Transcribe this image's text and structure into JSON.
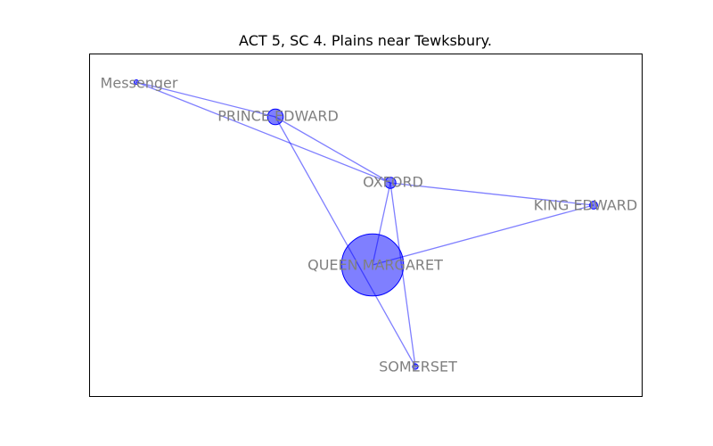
{
  "title": "ACT 5, SC 4. Plains near Tewksbury.",
  "colors": {
    "node_fill": "#0000ff",
    "edge": "#0000ff",
    "label": "#808080",
    "frame": "#000000"
  },
  "graph": {
    "nodes": [
      {
        "id": "messenger",
        "label": "Messenger",
        "weight": 1
      },
      {
        "id": "prince_edward",
        "label": "PRINCE EDWARD",
        "weight": 16
      },
      {
        "id": "oxford",
        "label": "OXFORD",
        "weight": 8
      },
      {
        "id": "king_edward",
        "label": "KING EDWARD",
        "weight": 4
      },
      {
        "id": "queen_margaret",
        "label": "QUEEN MARGARET",
        "weight": 250
      },
      {
        "id": "somerset",
        "label": "SOMERSET",
        "weight": 2
      }
    ],
    "edges": [
      {
        "source": "messenger",
        "target": "prince_edward"
      },
      {
        "source": "messenger",
        "target": "oxford"
      },
      {
        "source": "prince_edward",
        "target": "oxford"
      },
      {
        "source": "prince_edward",
        "target": "somerset"
      },
      {
        "source": "oxford",
        "target": "king_edward"
      },
      {
        "source": "oxford",
        "target": "queen_margaret"
      },
      {
        "source": "oxford",
        "target": "somerset"
      },
      {
        "source": "king_edward",
        "target": "queen_margaret"
      }
    ]
  }
}
